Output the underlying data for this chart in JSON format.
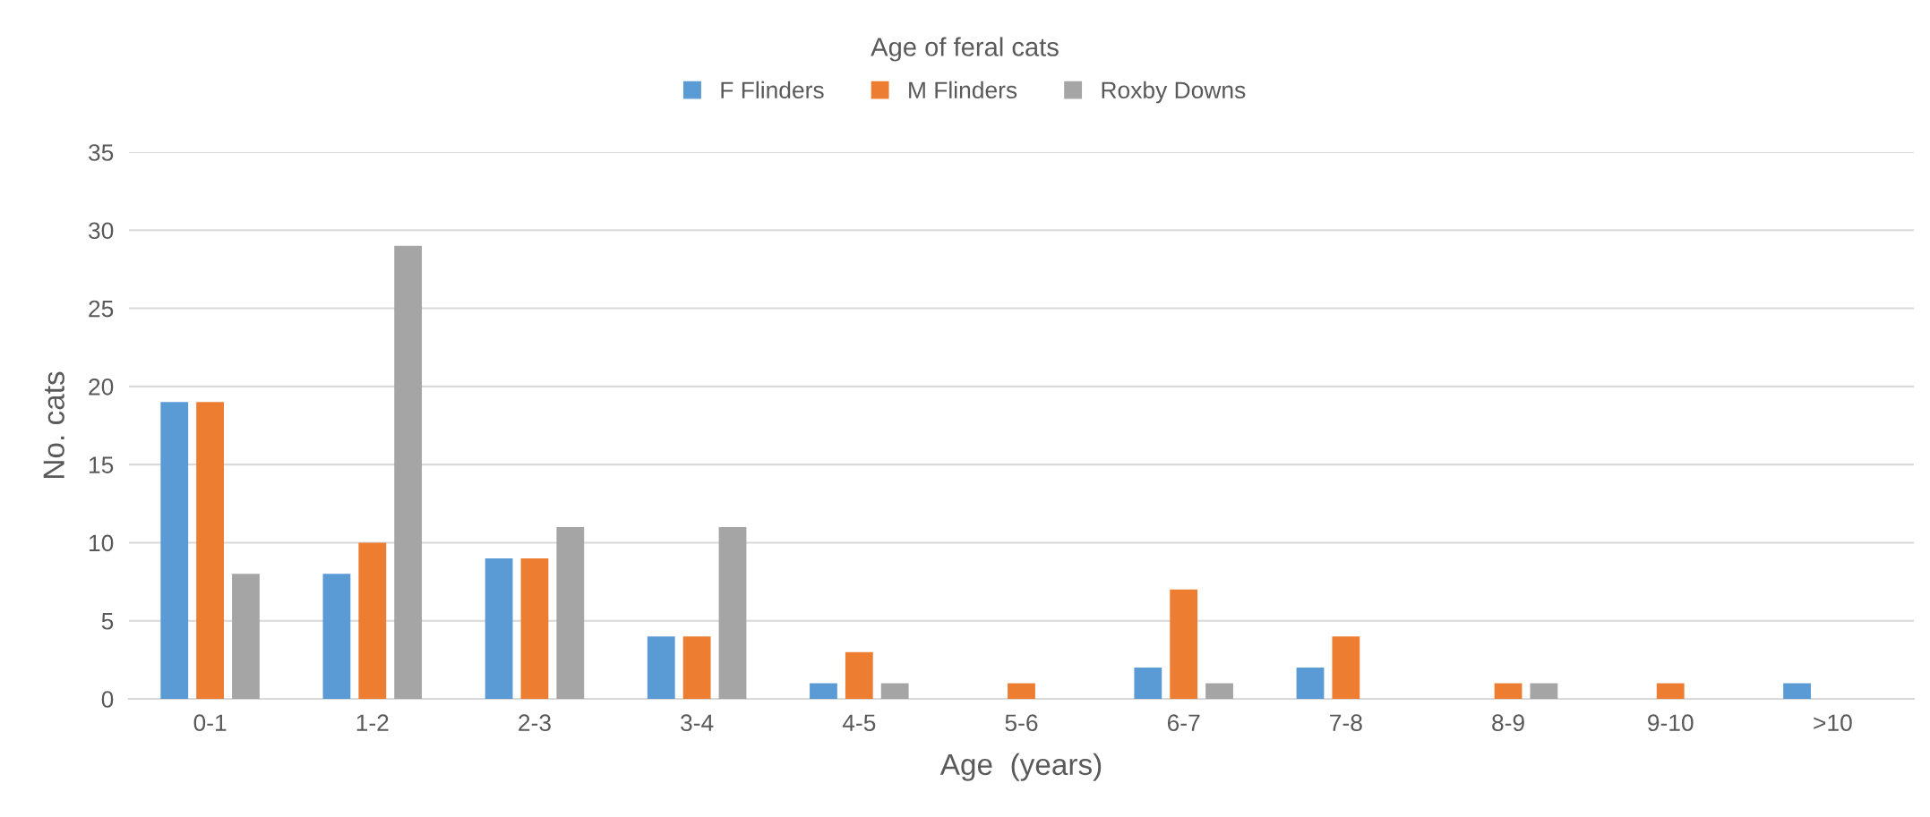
{
  "chart_data": {
    "type": "bar",
    "title": "Age of feral cats",
    "xlabel": "Age  (years)",
    "ylabel": "No. cats",
    "categories": [
      "0-1",
      "1-2",
      "2-3",
      "3-4",
      "4-5",
      "5-6",
      "6-7",
      "7-8",
      "8-9",
      "9-10",
      ">10"
    ],
    "series": [
      {
        "name": "F Flinders",
        "color": "#5b9bd5",
        "values": [
          19,
          8,
          9,
          4,
          1,
          0,
          2,
          2,
          0,
          0,
          1
        ]
      },
      {
        "name": "M Flinders",
        "color": "#ed7d31",
        "values": [
          19,
          10,
          9,
          4,
          3,
          1,
          7,
          4,
          1,
          1,
          0
        ]
      },
      {
        "name": "Roxby Downs",
        "color": "#a5a5a5",
        "values": [
          8,
          29,
          11,
          11,
          1,
          0,
          1,
          0,
          1,
          0,
          0
        ]
      }
    ],
    "ylim": [
      0,
      35
    ],
    "yticks": [
      0,
      5,
      10,
      15,
      20,
      25,
      30,
      35
    ],
    "grid": "y",
    "legend": "top"
  }
}
